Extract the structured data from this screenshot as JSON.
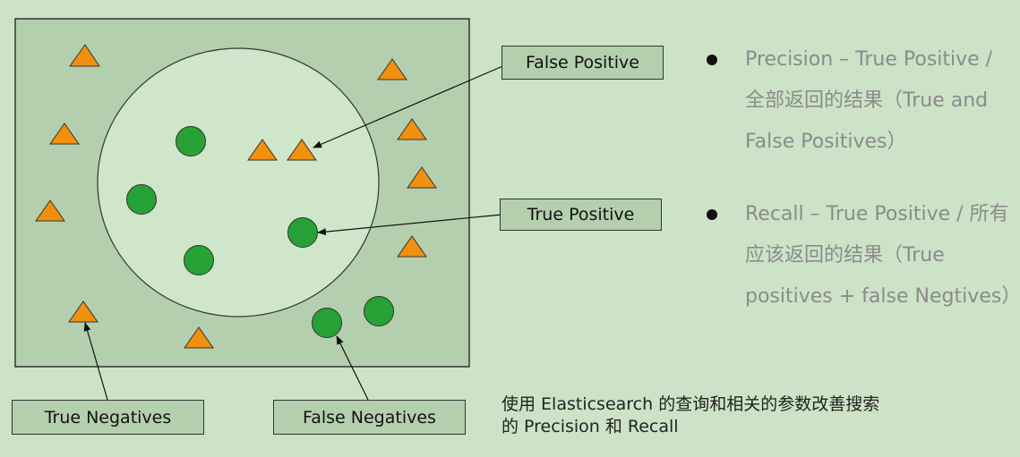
{
  "labels": {
    "false_positive": "False Positive",
    "true_positive": "True Positive",
    "true_negatives": "True Negatives",
    "false_negatives": "False Negatives"
  },
  "bullets": [
    {
      "text": "Precision – True Positive / 全部返回的结果（True and False Positives）"
    },
    {
      "text": "Recall – True Positive / 所有应该返回的结果（True positives + false Negtives）"
    }
  ],
  "caption": {
    "line1": "使用 Elasticsearch 的查询和相关的参数改善搜索",
    "line2": "的 Precision 和 Recall"
  },
  "colors": {
    "background": "#cce3c7",
    "outer_box": "#b4cfae",
    "inner_ellipse": "#cfe6ca",
    "circle": "#27a236",
    "triangle": "#f0900f",
    "bullet_text": "#8b8b8b"
  }
}
